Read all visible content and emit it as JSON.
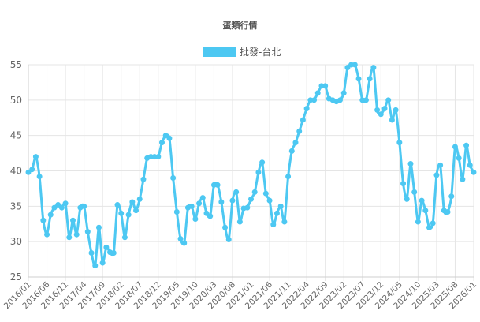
{
  "chart_data": {
    "type": "line",
    "title": "蛋類行情",
    "ylim": [
      25,
      55
    ],
    "y_ticks": [
      25,
      30,
      35,
      40,
      45,
      50,
      55
    ],
    "grid": true,
    "legend_position": "top-center",
    "x_ticks": [
      "2016/01",
      "2016/06",
      "2016/11",
      "2017/04",
      "2017/09",
      "2018/02",
      "2018/07",
      "2018/12",
      "2019/05",
      "2019/10",
      "2020/03",
      "2020/08",
      "2021/01",
      "2021/06",
      "2021/11",
      "2022/04",
      "2022/09",
      "2023/02",
      "2023/07",
      "2023/12",
      "2024/05",
      "2024/10",
      "2025/03",
      "2025/08",
      "2026/01"
    ],
    "series": [
      {
        "name": "批發-台北",
        "color": "#4DC8F2",
        "values": [
          39.8,
          40.2,
          42,
          39.2,
          33,
          31,
          33.8,
          34.8,
          35.2,
          34.8,
          35.4,
          30.6,
          33,
          31,
          34.8,
          35,
          31.4,
          28.4,
          26.6,
          32,
          27,
          29.2,
          28.5,
          28.4,
          35.2,
          34,
          30.6,
          33.8,
          35.6,
          34.4,
          36,
          38.8,
          41.8,
          42,
          42,
          42,
          44,
          45,
          44.6,
          39,
          34.2,
          30.4,
          29.8,
          34.8,
          35,
          33.2,
          35.4,
          36.2,
          34,
          33.6,
          38,
          38,
          35.6,
          32,
          30.3,
          35.8,
          37,
          32.8,
          34.7,
          34.8,
          36,
          37,
          39.8,
          41.2,
          36.8,
          35.8,
          32.4,
          34,
          35,
          32.8,
          39.2,
          42.8,
          44,
          45.6,
          47.2,
          48.8,
          50,
          50,
          51,
          52,
          52,
          50.2,
          50,
          49.8,
          50,
          51,
          54.6,
          55,
          55,
          53,
          50,
          50,
          53,
          54.6,
          48.6,
          48,
          48.8,
          50,
          47.2,
          48.6,
          44,
          38.2,
          36,
          41,
          37,
          32.8,
          35.8,
          34.4,
          32,
          32.6,
          39.4,
          40.8,
          34.4,
          34.2,
          36.4,
          43.4,
          41.8,
          38.8,
          43.6,
          40.8,
          39.8
        ]
      }
    ]
  }
}
